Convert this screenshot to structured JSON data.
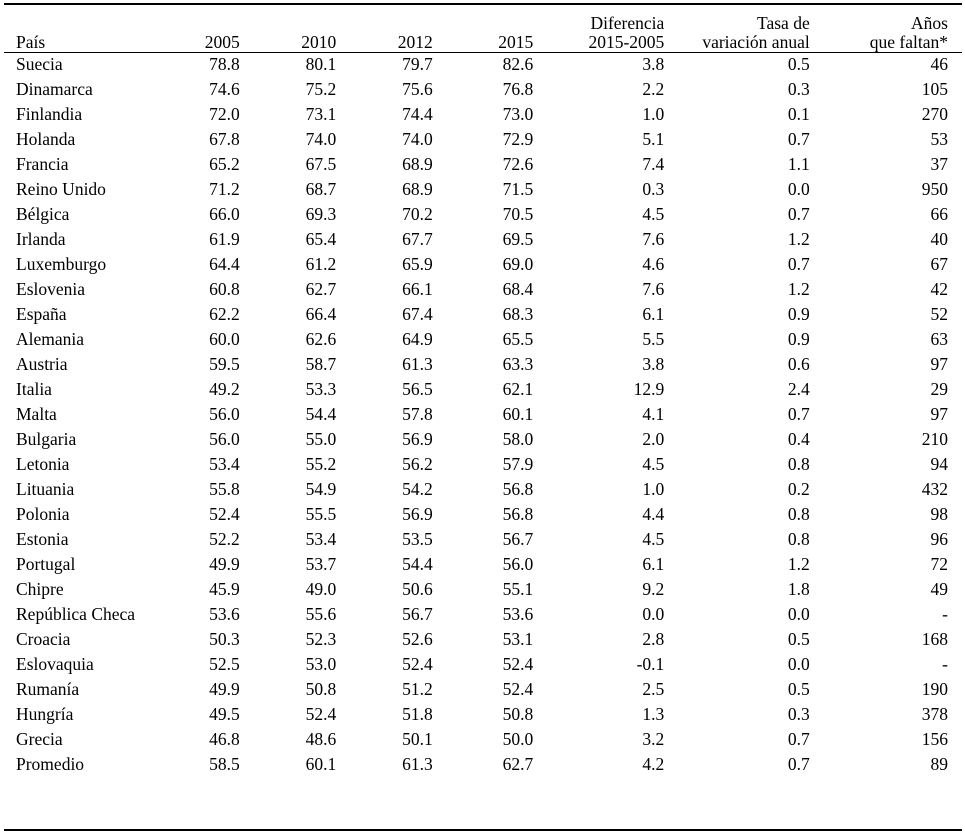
{
  "table": {
    "headers": {
      "country": "País",
      "y2005": "2005",
      "y2010": "2010",
      "y2012": "2012",
      "y2015": "2015",
      "diff_line1": "Diferencia",
      "diff_line2": "2015-2005",
      "rate_line1": "Tasa de",
      "rate_line2": "variación anual",
      "years_line1": "Años",
      "years_line2": "que faltan*"
    },
    "rows": [
      {
        "country": "Suecia",
        "y2005": "78.8",
        "y2010": "80.1",
        "y2012": "79.7",
        "y2015": "82.6",
        "diff": "3.8",
        "rate": "0.5",
        "years": "46"
      },
      {
        "country": "Dinamarca",
        "y2005": "74.6",
        "y2010": "75.2",
        "y2012": "75.6",
        "y2015": "76.8",
        "diff": "2.2",
        "rate": "0.3",
        "years": "105"
      },
      {
        "country": "Finlandia",
        "y2005": "72.0",
        "y2010": "73.1",
        "y2012": "74.4",
        "y2015": "73.0",
        "diff": "1.0",
        "rate": "0.1",
        "years": "270"
      },
      {
        "country": "Holanda",
        "y2005": "67.8",
        "y2010": "74.0",
        "y2012": "74.0",
        "y2015": "72.9",
        "diff": "5.1",
        "rate": "0.7",
        "years": "53"
      },
      {
        "country": "Francia",
        "y2005": "65.2",
        "y2010": "67.5",
        "y2012": "68.9",
        "y2015": "72.6",
        "diff": "7.4",
        "rate": "1.1",
        "years": "37"
      },
      {
        "country": "Reino Unido",
        "y2005": "71.2",
        "y2010": "68.7",
        "y2012": "68.9",
        "y2015": "71.5",
        "diff": "0.3",
        "rate": "0.0",
        "years": "950"
      },
      {
        "country": "Bélgica",
        "y2005": "66.0",
        "y2010": "69.3",
        "y2012": "70.2",
        "y2015": "70.5",
        "diff": "4.5",
        "rate": "0.7",
        "years": "66"
      },
      {
        "country": "Irlanda",
        "y2005": "61.9",
        "y2010": "65.4",
        "y2012": "67.7",
        "y2015": "69.5",
        "diff": "7.6",
        "rate": "1.2",
        "years": "40"
      },
      {
        "country": "Luxemburgo",
        "y2005": "64.4",
        "y2010": "61.2",
        "y2012": "65.9",
        "y2015": "69.0",
        "diff": "4.6",
        "rate": "0.7",
        "years": "67"
      },
      {
        "country": "Eslovenia",
        "y2005": "60.8",
        "y2010": "62.7",
        "y2012": "66.1",
        "y2015": "68.4",
        "diff": "7.6",
        "rate": "1.2",
        "years": "42"
      },
      {
        "country": "España",
        "y2005": "62.2",
        "y2010": "66.4",
        "y2012": "67.4",
        "y2015": "68.3",
        "diff": "6.1",
        "rate": "0.9",
        "years": "52"
      },
      {
        "country": "Alemania",
        "y2005": "60.0",
        "y2010": "62.6",
        "y2012": "64.9",
        "y2015": "65.5",
        "diff": "5.5",
        "rate": "0.9",
        "years": "63"
      },
      {
        "country": "Austria",
        "y2005": "59.5",
        "y2010": "58.7",
        "y2012": "61.3",
        "y2015": "63.3",
        "diff": "3.8",
        "rate": "0.6",
        "years": "97"
      },
      {
        "country": "Italia",
        "y2005": "49.2",
        "y2010": "53.3",
        "y2012": "56.5",
        "y2015": "62.1",
        "diff": "12.9",
        "rate": "2.4",
        "years": "29"
      },
      {
        "country": "Malta",
        "y2005": "56.0",
        "y2010": "54.4",
        "y2012": "57.8",
        "y2015": "60.1",
        "diff": "4.1",
        "rate": "0.7",
        "years": "97"
      },
      {
        "country": "Bulgaria",
        "y2005": "56.0",
        "y2010": "55.0",
        "y2012": "56.9",
        "y2015": "58.0",
        "diff": "2.0",
        "rate": "0.4",
        "years": "210"
      },
      {
        "country": "Letonia",
        "y2005": "53.4",
        "y2010": "55.2",
        "y2012": "56.2",
        "y2015": "57.9",
        "diff": "4.5",
        "rate": "0.8",
        "years": "94"
      },
      {
        "country": "Lituania",
        "y2005": "55.8",
        "y2010": "54.9",
        "y2012": "54.2",
        "y2015": "56.8",
        "diff": "1.0",
        "rate": "0.2",
        "years": "432"
      },
      {
        "country": "Polonia",
        "y2005": "52.4",
        "y2010": "55.5",
        "y2012": "56.9",
        "y2015": "56.8",
        "diff": "4.4",
        "rate": "0.8",
        "years": "98"
      },
      {
        "country": "Estonia",
        "y2005": "52.2",
        "y2010": "53.4",
        "y2012": "53.5",
        "y2015": "56.7",
        "diff": "4.5",
        "rate": "0.8",
        "years": "96"
      },
      {
        "country": "Portugal",
        "y2005": "49.9",
        "y2010": "53.7",
        "y2012": "54.4",
        "y2015": "56.0",
        "diff": "6.1",
        "rate": "1.2",
        "years": "72"
      },
      {
        "country": "Chipre",
        "y2005": "45.9",
        "y2010": "49.0",
        "y2012": "50.6",
        "y2015": "55.1",
        "diff": "9.2",
        "rate": "1.8",
        "years": "49"
      },
      {
        "country": "República Checa",
        "y2005": "53.6",
        "y2010": "55.6",
        "y2012": "56.7",
        "y2015": "53.6",
        "diff": "0.0",
        "rate": "0.0",
        "years": "-"
      },
      {
        "country": "Croacia",
        "y2005": "50.3",
        "y2010": "52.3",
        "y2012": "52.6",
        "y2015": "53.1",
        "diff": "2.8",
        "rate": "0.5",
        "years": "168"
      },
      {
        "country": "Eslovaquia",
        "y2005": "52.5",
        "y2010": "53.0",
        "y2012": "52.4",
        "y2015": "52.4",
        "diff": "-0.1",
        "rate": "0.0",
        "years": "-"
      },
      {
        "country": "Rumanía",
        "y2005": "49.9",
        "y2010": "50.8",
        "y2012": "51.2",
        "y2015": "52.4",
        "diff": "2.5",
        "rate": "0.5",
        "years": "190"
      },
      {
        "country": "Hungría",
        "y2005": "49.5",
        "y2010": "52.4",
        "y2012": "51.8",
        "y2015": "50.8",
        "diff": "1.3",
        "rate": "0.3",
        "years": "378"
      },
      {
        "country": "Grecia",
        "y2005": "46.8",
        "y2010": "48.6",
        "y2012": "50.1",
        "y2015": "50.0",
        "diff": "3.2",
        "rate": "0.7",
        "years": "156"
      },
      {
        "country": "Promedio",
        "y2005": "58.5",
        "y2010": "60.1",
        "y2012": "61.3",
        "y2015": "62.7",
        "diff": "4.2",
        "rate": "0.7",
        "years": "89"
      }
    ]
  }
}
